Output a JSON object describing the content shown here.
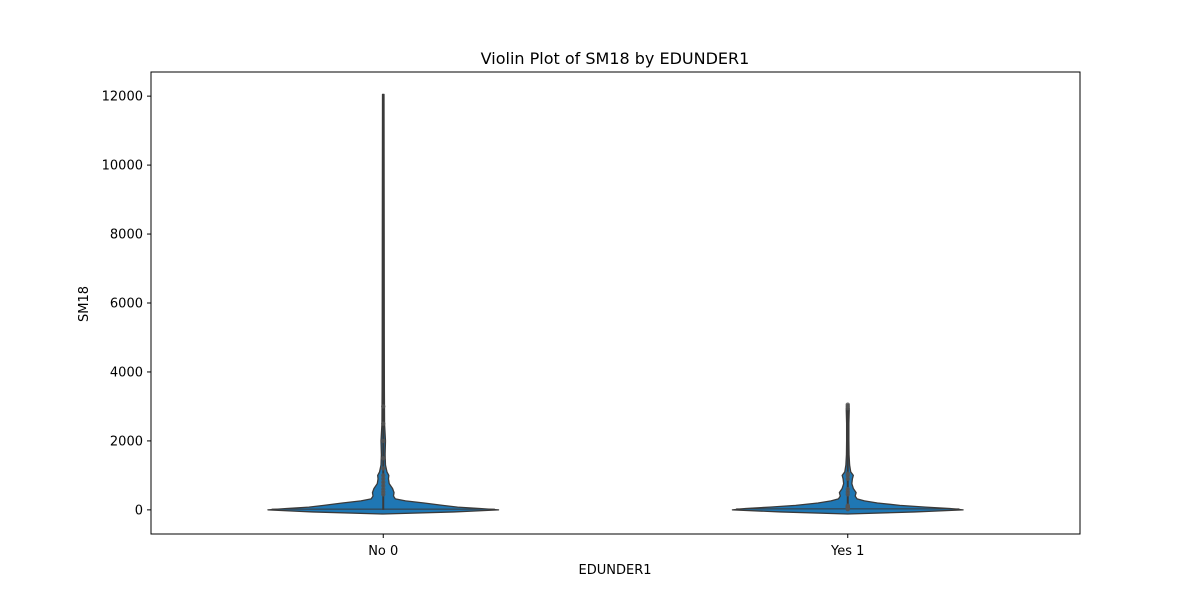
{
  "chart_data": {
    "type": "violin",
    "title": "Violin Plot of SM18 by EDUNDER1",
    "xlabel": "EDUNDER1",
    "ylabel": "SM18",
    "categories": [
      "No 0",
      "Yes 1"
    ],
    "ylim": [
      -700,
      12700
    ],
    "yticks": [
      0,
      2000,
      4000,
      6000,
      8000,
      10000,
      12000
    ],
    "grid": false,
    "legend": "none",
    "fill_color": "#1f77b4",
    "edge_color": "#3a3a3a",
    "violins": [
      {
        "category": "No 0",
        "min": 0,
        "max": 12050,
        "median": 20,
        "kde_y": [
          -120,
          -60,
          0,
          40,
          80,
          130,
          200,
          260,
          320,
          400,
          500,
          620,
          760,
          900,
          1000,
          1100,
          1300,
          1600,
          2000,
          2500,
          3500,
          5000,
          8000,
          12050
        ],
        "kde_w": [
          0.0,
          0.38,
          0.62,
          0.52,
          0.4,
          0.32,
          0.22,
          0.12,
          0.065,
          0.055,
          0.058,
          0.05,
          0.032,
          0.028,
          0.03,
          0.02,
          0.012,
          0.01,
          0.012,
          0.007,
          0.006,
          0.0055,
          0.005,
          0.004
        ],
        "points": [
          450,
          520,
          600,
          700,
          800,
          900,
          1000,
          1200,
          1500,
          2000,
          2500,
          3000
        ]
      },
      {
        "category": "Yes 1",
        "min": 0,
        "max": 3050,
        "median": 30,
        "kde_y": [
          -120,
          -60,
          0,
          40,
          80,
          130,
          200,
          260,
          320,
          400,
          500,
          620,
          760,
          900,
          1000,
          1100,
          1300,
          1600,
          2000,
          2500,
          2900,
          3050
        ],
        "kde_w": [
          0.0,
          0.36,
          0.62,
          0.55,
          0.42,
          0.28,
          0.16,
          0.09,
          0.05,
          0.04,
          0.045,
          0.03,
          0.022,
          0.025,
          0.03,
          0.016,
          0.01,
          0.007,
          0.006,
          0.006,
          0.008,
          0.004
        ],
        "points": [
          20,
          30,
          40,
          50,
          60,
          70,
          80,
          100,
          120,
          450,
          520,
          600,
          900,
          1000,
          1050,
          2950,
          3000,
          3050
        ]
      }
    ]
  }
}
